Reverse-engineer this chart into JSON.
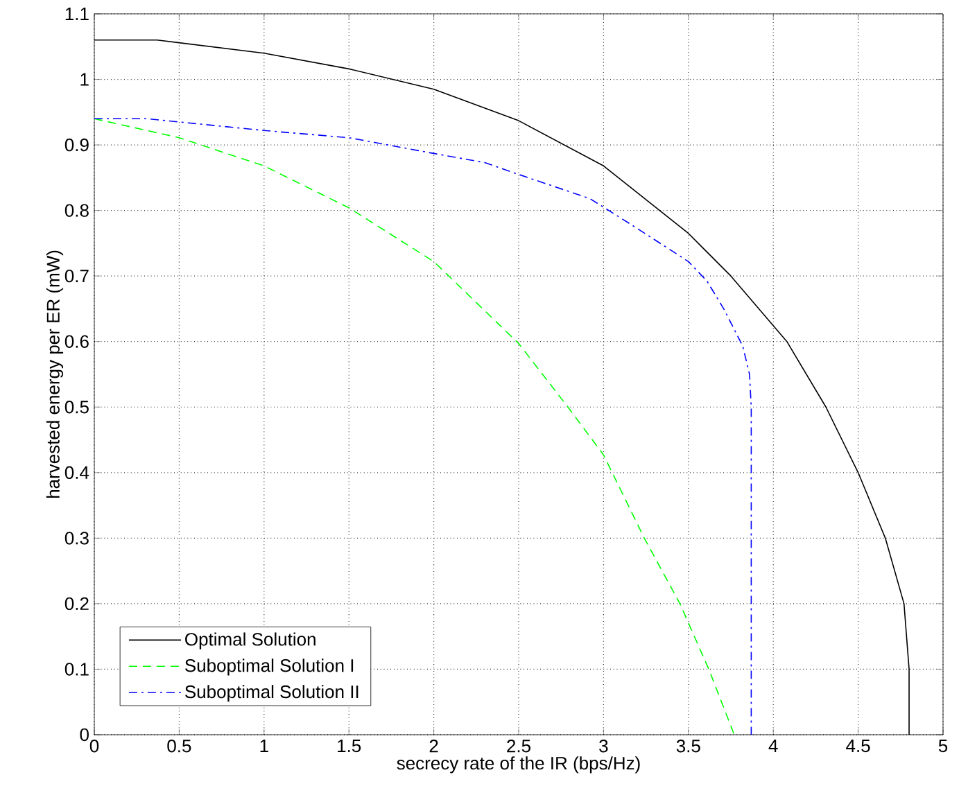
{
  "chart_data": {
    "type": "line",
    "xlabel": "secrecy rate of the IR (bps/Hz)",
    "ylabel": "harvested energy per ER (mW)",
    "xlim": [
      0,
      5
    ],
    "ylim": [
      0,
      1.1
    ],
    "xticks": [
      0,
      0.5,
      1,
      1.5,
      2,
      2.5,
      3,
      3.5,
      4,
      4.5,
      5
    ],
    "yticks": [
      0,
      0.1,
      0.2,
      0.3,
      0.4,
      0.5,
      0.6,
      0.7,
      0.8,
      0.9,
      1,
      1.1
    ],
    "grid": true,
    "legend": "bottom left",
    "marker": "none",
    "series": [
      {
        "name": "Optimal Solution",
        "color": "#000000",
        "line_style": "solid",
        "x": [
          0,
          0.37,
          1,
          1.5,
          2,
          2.5,
          3,
          3.5,
          3.75,
          4.08,
          4.31,
          4.5,
          4.66,
          4.77,
          4.8,
          4.8
        ],
        "values": [
          1.06,
          1.06,
          1.04,
          1.016,
          0.985,
          0.937,
          0.868,
          0.765,
          0.7,
          0.6,
          0.5,
          0.4,
          0.3,
          0.2,
          0.1,
          0
        ]
      },
      {
        "name": "Suboptimal Solution I",
        "color": "#00ff00",
        "line_style": "dashed",
        "x": [
          0,
          0.5,
          1,
          1.5,
          2,
          2.5,
          2.79,
          3,
          3.24,
          3.45,
          3.62,
          3.77
        ],
        "values": [
          0.94,
          0.911,
          0.868,
          0.804,
          0.722,
          0.597,
          0.5,
          0.427,
          0.3,
          0.2,
          0.1,
          0
        ]
      },
      {
        "name": "Suboptimal Solution II",
        "color": "#0000ff",
        "line_style": "dashdot",
        "x": [
          0,
          0.31,
          1,
          1.5,
          2,
          2.3,
          2.5,
          2.92,
          3.19,
          3.5,
          3.61,
          3.71,
          3.82,
          3.86,
          3.87,
          3.87
        ],
        "values": [
          0.94,
          0.94,
          0.922,
          0.911,
          0.887,
          0.873,
          0.855,
          0.818,
          0.774,
          0.722,
          0.692,
          0.649,
          0.593,
          0.55,
          0.5,
          0
        ]
      }
    ]
  }
}
